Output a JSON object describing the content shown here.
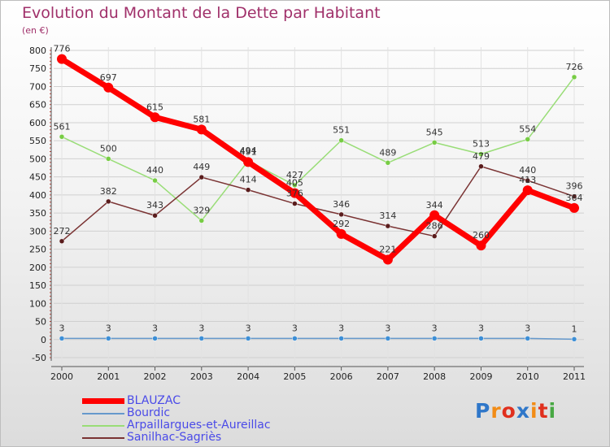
{
  "chart_data": {
    "type": "line",
    "title": "Evolution du Montant de la Dette par Habitant",
    "subtitle": "(en €)",
    "x": [
      "2000",
      "2001",
      "2002",
      "2003",
      "2004",
      "2005",
      "2006",
      "2007",
      "2008",
      "2009",
      "2010",
      "2011"
    ],
    "y_ticks": [
      -50,
      0,
      50,
      100,
      150,
      200,
      250,
      300,
      350,
      400,
      450,
      500,
      550,
      600,
      650,
      700,
      750,
      800
    ],
    "ylim": [
      -50,
      800
    ],
    "grid": "horizontal",
    "legend_position": "bottom-left",
    "series": [
      {
        "name": "BLAUZAC",
        "color": "#ff0000",
        "marker_color": "#ff0000",
        "width": 7,
        "label_color": "#333333",
        "values": [
          776,
          697,
          615,
          581,
          491,
          405,
          292,
          221,
          344,
          260,
          413,
          364
        ]
      },
      {
        "name": "Bourdic",
        "color": "#6699cc",
        "marker_color": "#3d8fd6",
        "width": 1.5,
        "label_color": "#333333",
        "values": [
          3,
          3,
          3,
          3,
          3,
          3,
          3,
          3,
          3,
          3,
          3,
          1
        ]
      },
      {
        "name": "Arpaillargues-et-Aureillac",
        "color": "#99dd77",
        "marker_color": "#77cc44",
        "width": 1.5,
        "label_color": "#333333",
        "values": [
          561,
          500,
          440,
          329,
          494,
          427,
          551,
          489,
          545,
          513,
          554,
          726
        ]
      },
      {
        "name": "Sanilhac-Sagriès",
        "color": "#7a3333",
        "marker_color": "#5a1c1c",
        "width": 1.5,
        "label_color": "#333333",
        "values": [
          272,
          382,
          343,
          449,
          414,
          376,
          346,
          314,
          286,
          479,
          440,
          396
        ]
      }
    ]
  },
  "logo": {
    "letters": [
      "P",
      "r",
      "o",
      "x",
      "i",
      "t",
      "i"
    ],
    "colors": [
      "#2f77c9",
      "#f28c16",
      "#e0301e",
      "#2f77c9",
      "#f28c16",
      "#e0301e",
      "#48a843"
    ]
  },
  "colors": {
    "title": "#a0306a",
    "legend_text": "#4a4ae8",
    "grid": "#d0d0d0",
    "axis": "#555555"
  }
}
